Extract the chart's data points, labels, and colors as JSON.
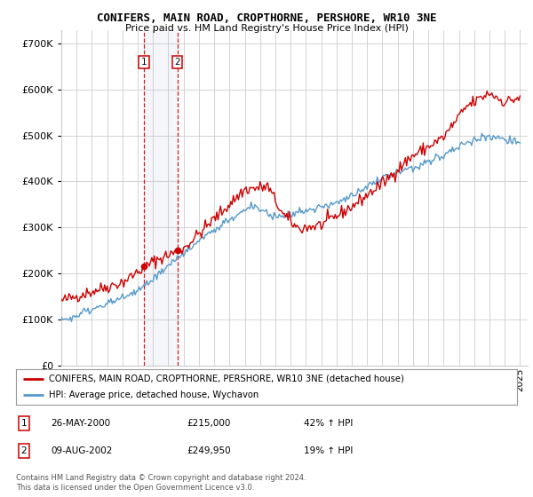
{
  "title": "CONIFERS, MAIN ROAD, CROPTHORNE, PERSHORE, WR10 3NE",
  "subtitle": "Price paid vs. HM Land Registry's House Price Index (HPI)",
  "ytick_values": [
    0,
    100000,
    200000,
    300000,
    400000,
    500000,
    600000,
    700000
  ],
  "ylim": [
    0,
    730000
  ],
  "xlim_start": 1995.0,
  "xlim_end": 2025.5,
  "sale1_date": 2000.4,
  "sale1_price": 215000,
  "sale1_label": "1",
  "sale1_date_str": "26-MAY-2000",
  "sale1_price_str": "£215,000",
  "sale1_hpi_str": "42% ↑ HPI",
  "sale2_date": 2002.6,
  "sale2_price": 249950,
  "sale2_label": "2",
  "sale2_date_str": "09-AUG-2002",
  "sale2_price_str": "£249,950",
  "sale2_hpi_str": "19% ↑ HPI",
  "legend_line1": "CONIFERS, MAIN ROAD, CROPTHORNE, PERSHORE, WR10 3NE (detached house)",
  "legend_line2": "HPI: Average price, detached house, Wychavon",
  "footer": "Contains HM Land Registry data © Crown copyright and database right 2024.\nThis data is licensed under the Open Government Licence v3.0.",
  "red_color": "#cc0000",
  "blue_color": "#5599cc",
  "background_color": "#ffffff",
  "grid_color": "#cccccc"
}
